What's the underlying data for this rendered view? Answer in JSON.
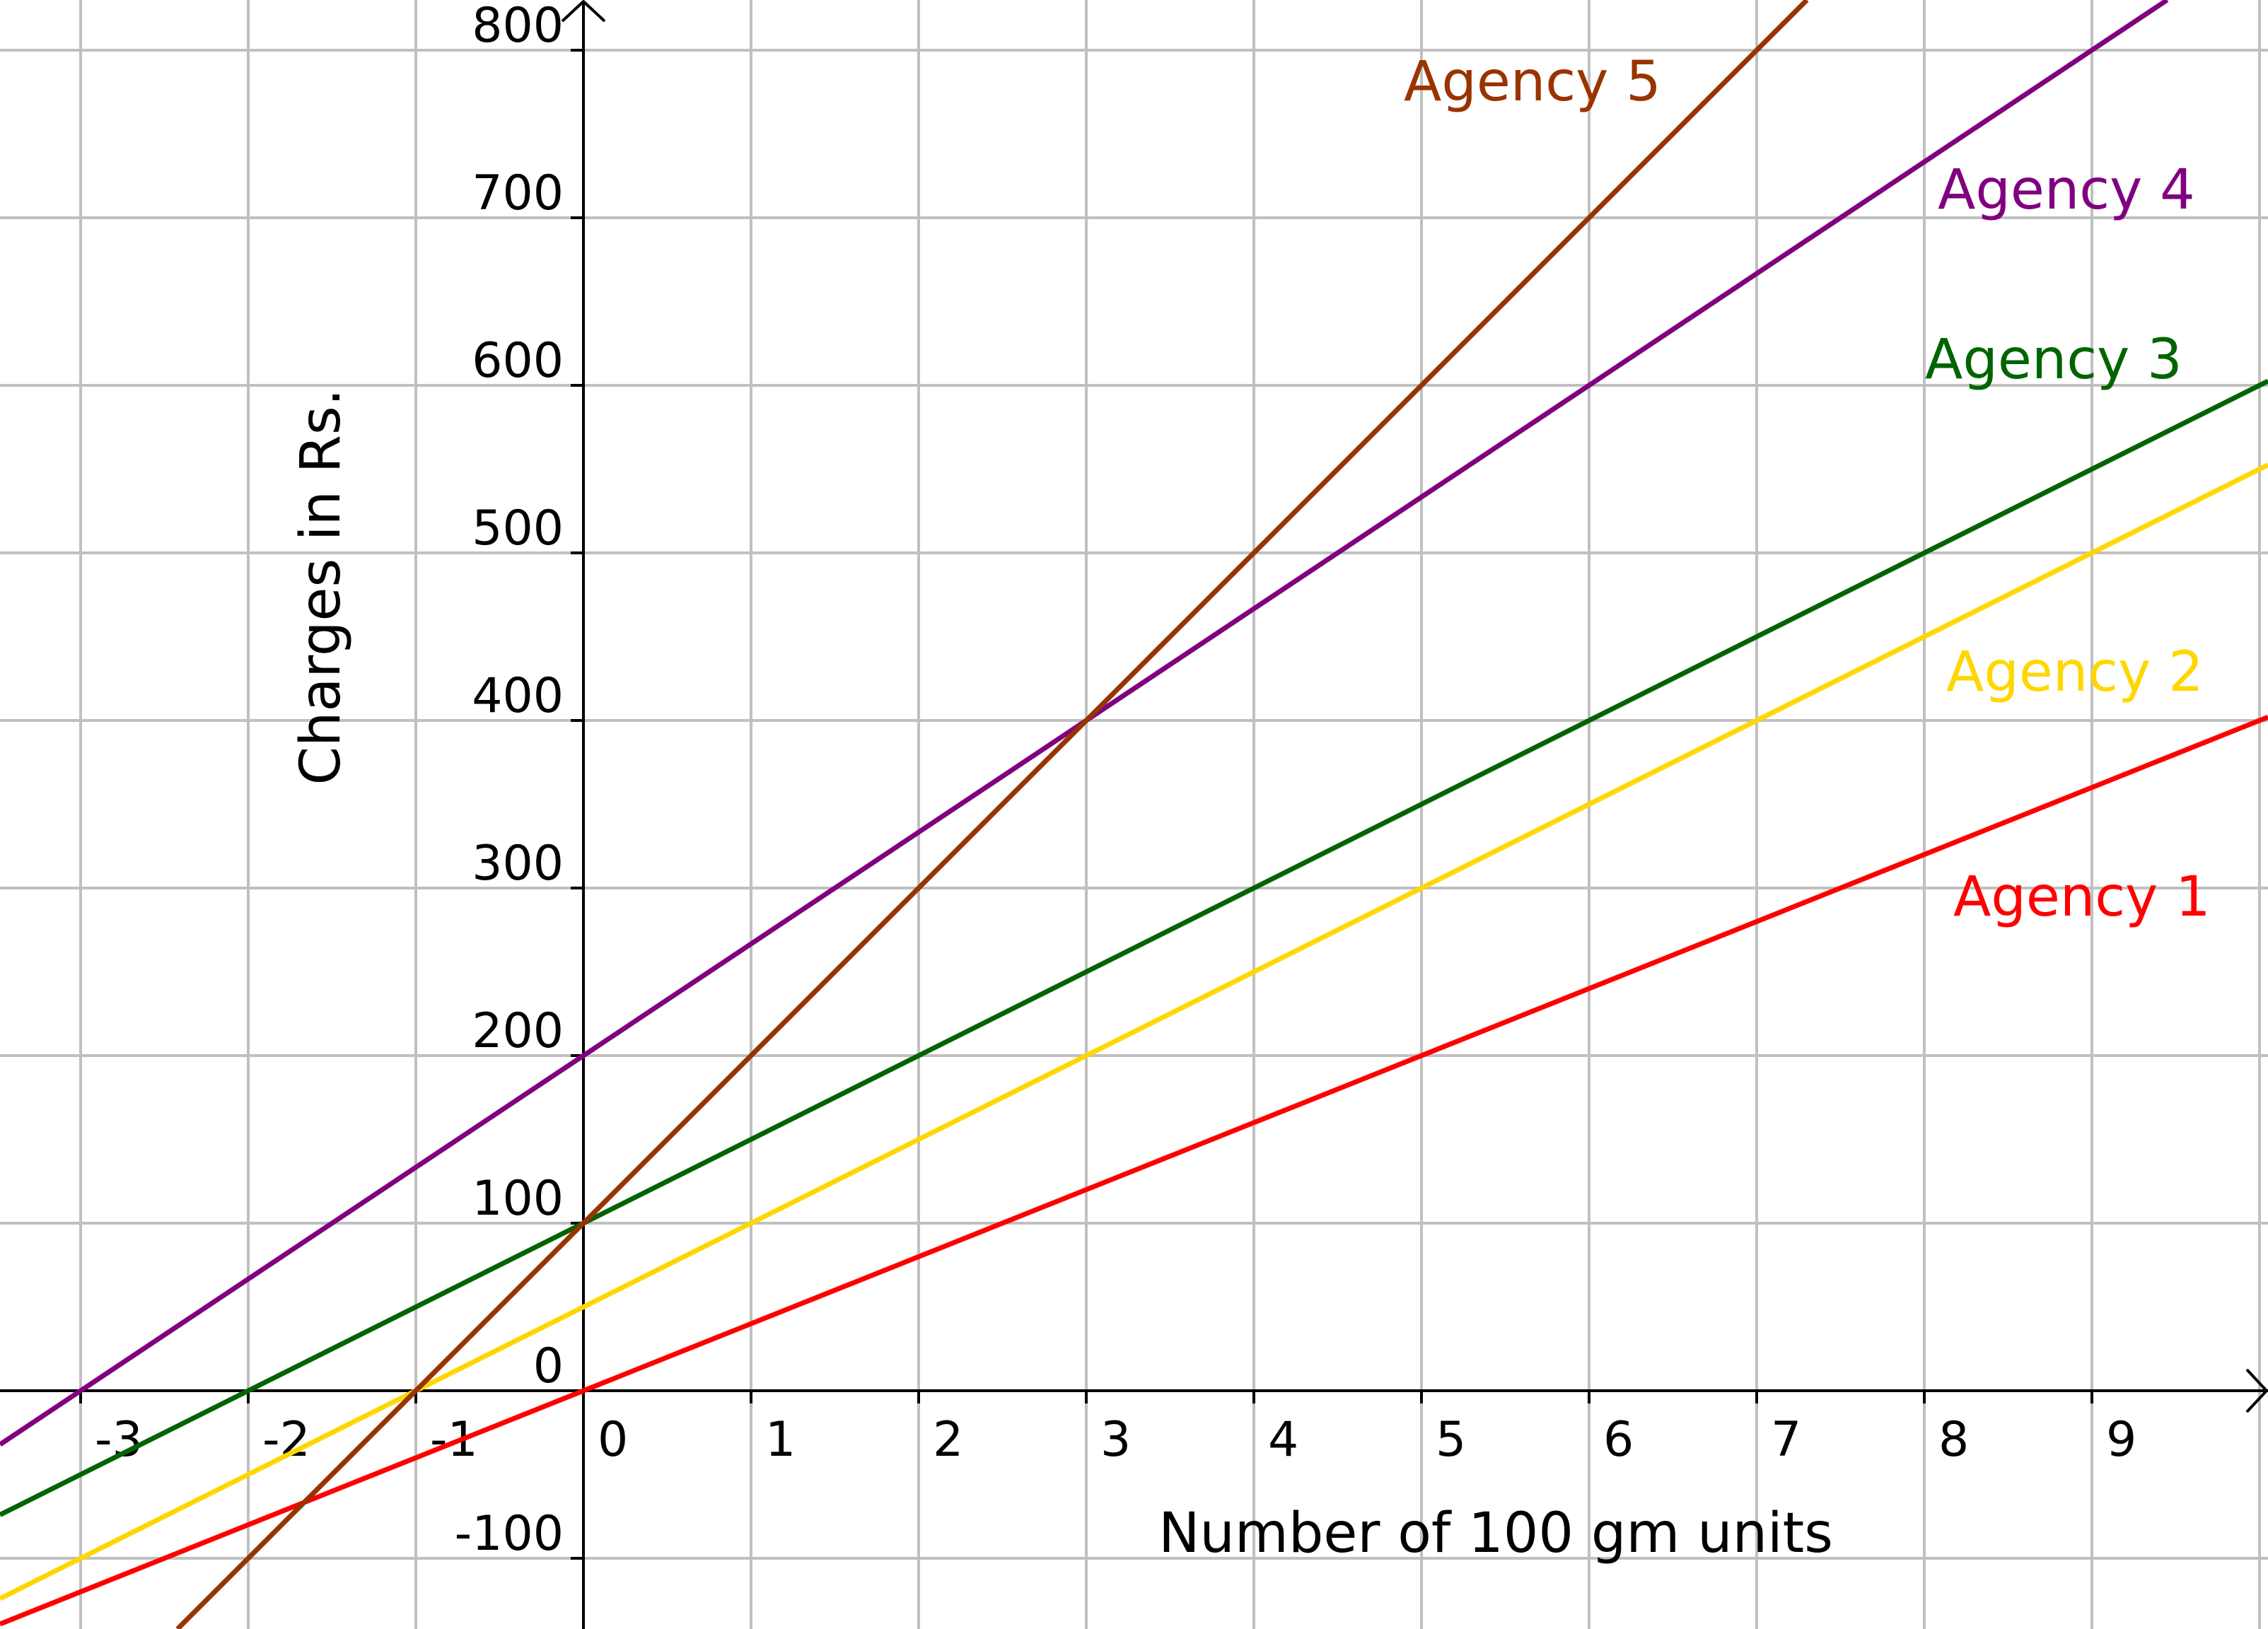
{
  "chart_data": {
    "type": "line",
    "title": "",
    "xlabel": "Number of 100 gm units",
    "ylabel": "Charges in Rs.",
    "xlim": [
      -3.48,
      10.05
    ],
    "ylim": [
      -142,
      830
    ],
    "grid": true,
    "x_ticks": [
      -3,
      -2,
      -1,
      0,
      1,
      2,
      3,
      4,
      5,
      6,
      7,
      8,
      9
    ],
    "y_ticks": [
      -100,
      0,
      100,
      200,
      300,
      400,
      500,
      600,
      700,
      800
    ],
    "series": [
      {
        "name": "Agency 1",
        "color": "#ff0000",
        "intercept": 0,
        "slope": 40
      },
      {
        "name": "Agency 2",
        "color": "#ffd700",
        "intercept": 50,
        "slope": 50
      },
      {
        "name": "Agency 3",
        "color": "#006400",
        "intercept": 100,
        "slope": 50
      },
      {
        "name": "Agency 4",
        "color": "#800080",
        "intercept": 200,
        "slope": 66.67
      },
      {
        "name": "Agency 5",
        "color": "#993300",
        "intercept": 100,
        "slope": 100
      }
    ]
  }
}
